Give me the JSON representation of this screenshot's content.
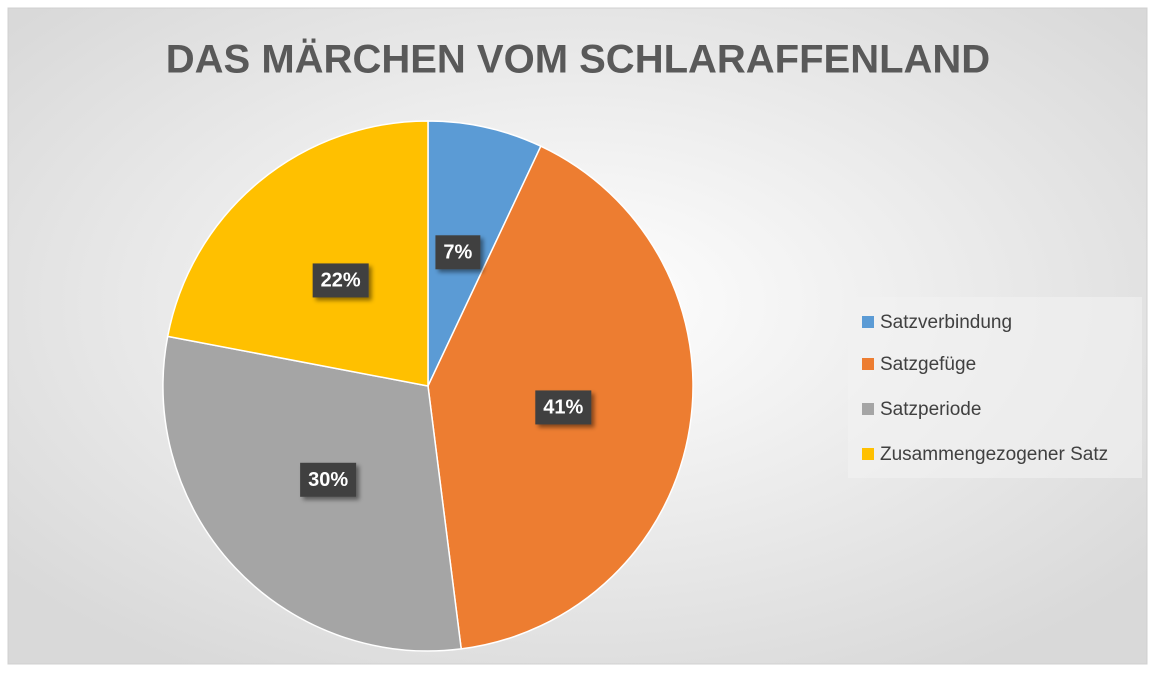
{
  "chart_data": {
    "type": "pie",
    "title": "DAS MÄRCHEN VOM SCHLARAFFENLAND",
    "categories": [
      "Satzverbindung",
      "Satzgefüge",
      "Satzperiode",
      "Zusammengezogener Satz"
    ],
    "values": [
      7,
      41,
      30,
      22
    ],
    "value_labels": [
      "7%",
      "41%",
      "30%",
      "22%"
    ],
    "colors": [
      "#5b9bd5",
      "#ed7d31",
      "#a5a5a5",
      "#ffc000"
    ],
    "legend": "right"
  }
}
